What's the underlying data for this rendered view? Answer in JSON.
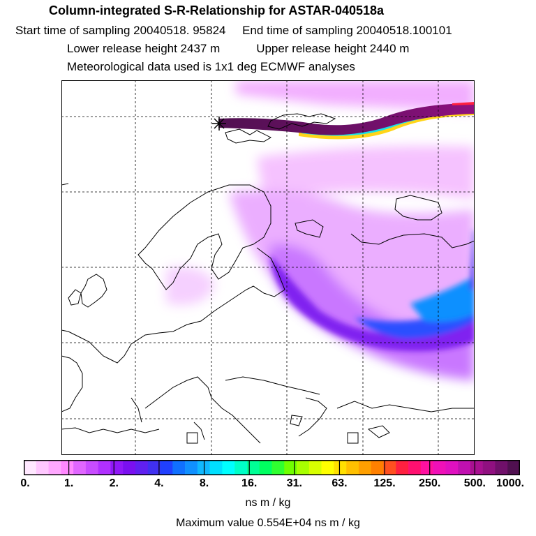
{
  "header": {
    "title": "Column-integrated S-R-Relationship for ASTAR-040518a",
    "line2": "Start time of sampling 20040518. 95824     End time of sampling 20040518.100101",
    "line3": "Lower release height 2437 m           Upper release height 2440 m",
    "line4": "Meteorological data used is 1x1 deg ECMWF analyses"
  },
  "colorbar": {
    "tick_labels": [
      "0.",
      "1.",
      "2.",
      "4.",
      "8.",
      "16.",
      "31.",
      "63.",
      "125.",
      "250.",
      "500.",
      "1000."
    ],
    "colors": [
      "#ffe8ff",
      "#ffc8ff",
      "#ffa8ff",
      "#ff88ff",
      "#e066ff",
      "#c84cff",
      "#b030ff",
      "#9018f8",
      "#7a10f0",
      "#6020f0",
      "#4030f0",
      "#2040ff",
      "#1070ff",
      "#1090ff",
      "#10b8ff",
      "#00e0ff",
      "#00ffff",
      "#00ffc8",
      "#00ff96",
      "#00ff60",
      "#30ff30",
      "#70ff00",
      "#a8ff00",
      "#d8ff00",
      "#ffff00",
      "#ffe000",
      "#ffc000",
      "#ffa000",
      "#ff8000",
      "#ff5020",
      "#ff2040",
      "#ff1070",
      "#ff10a0",
      "#f010b8",
      "#e010c0",
      "#c010b0",
      "#a81090",
      "#901080",
      "#70106a",
      "#501050"
    ],
    "units": "ns m / kg",
    "maximum": "Maximum value  0.554E+04 ns m / kg"
  }
}
